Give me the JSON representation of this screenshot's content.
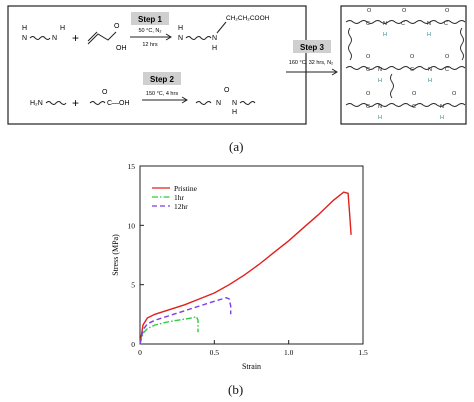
{
  "scheme": {
    "step1": {
      "label": "Step 1",
      "cond1": "50 °C, N₂",
      "cond2": "12 hrs",
      "product_group": "CH₂CH₂COOH",
      "oh": "OH",
      "o": "O",
      "h": "H",
      "n": "N"
    },
    "step2": {
      "label": "Step 2",
      "cond": "150 °C, 4 hrs",
      "amine": "H₂N",
      "acid": "C—OH",
      "o": "O",
      "h": "H",
      "n": "N"
    },
    "step3": {
      "label": "Step 3",
      "cond": "160 °C, 32 hrs, N₂"
    },
    "network": {
      "atoms_c": "C",
      "atoms_n": "N",
      "atoms_o": "O",
      "atoms_h": "H"
    },
    "plus": "+"
  },
  "captions": {
    "a": "(a)",
    "b": "(b)"
  },
  "chart_data": {
    "type": "line",
    "xlabel": "Strain",
    "ylabel": "Stress (MPa)",
    "xlim": [
      0,
      1.5
    ],
    "ylim": [
      0,
      15
    ],
    "xticks": [
      "0",
      "0.5",
      "1.0",
      "1.5"
    ],
    "yticks": [
      "0",
      "5",
      "10",
      "15"
    ],
    "legend_position": "top-left",
    "series": [
      {
        "name": "Pristine",
        "color": "#e0201c",
        "dash": "solid",
        "x": [
          0,
          0.02,
          0.05,
          0.1,
          0.2,
          0.3,
          0.4,
          0.5,
          0.6,
          0.7,
          0.8,
          0.9,
          1.0,
          1.1,
          1.2,
          1.3,
          1.37,
          1.4,
          1.41,
          1.42
        ],
        "y": [
          0,
          1.6,
          2.2,
          2.5,
          2.9,
          3.3,
          3.8,
          4.3,
          5.0,
          5.8,
          6.7,
          7.7,
          8.7,
          9.8,
          10.9,
          12.1,
          12.8,
          12.7,
          11.0,
          9.2
        ]
      },
      {
        "name": "1hr",
        "color": "#2ecc40",
        "dash": "dashdot",
        "x": [
          0,
          0.02,
          0.05,
          0.1,
          0.15,
          0.2,
          0.25,
          0.3,
          0.35,
          0.38,
          0.39,
          0.39
        ],
        "y": [
          0,
          0.9,
          1.3,
          1.6,
          1.75,
          1.9,
          2.0,
          2.1,
          2.2,
          2.3,
          2.0,
          1.0
        ]
      },
      {
        "name": "12hr",
        "color": "#7b3fe4",
        "dash": "dashed",
        "x": [
          0,
          0.02,
          0.05,
          0.1,
          0.2,
          0.3,
          0.4,
          0.5,
          0.58,
          0.6,
          0.61,
          0.61
        ],
        "y": [
          0,
          1.2,
          1.7,
          2.0,
          2.4,
          2.8,
          3.2,
          3.6,
          3.9,
          3.8,
          3.2,
          2.5
        ]
      }
    ]
  }
}
